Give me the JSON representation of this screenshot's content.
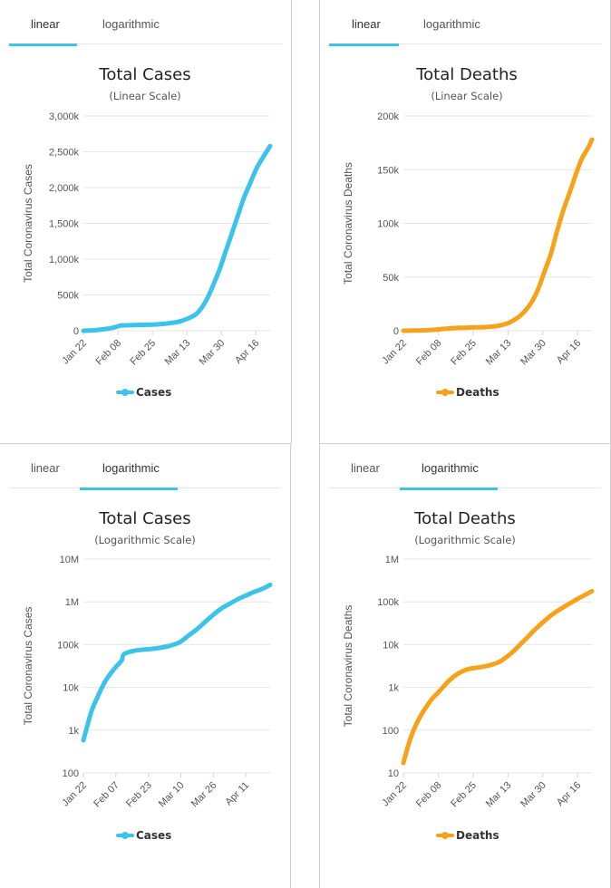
{
  "tabs": {
    "linear_label": "linear",
    "log_label": "logarithmic"
  },
  "chart_data": [
    {
      "id": "cases-linear",
      "type": "line",
      "title": "Total Cases",
      "subtitle": "(Linear Scale)",
      "ylabel": "Total Coronavirus Cases",
      "scale": "linear",
      "active_tab": "linear",
      "ylim": [
        0,
        3000000
      ],
      "yticks": [
        0,
        500000,
        1000000,
        1500000,
        2000000,
        2500000,
        3000000
      ],
      "ytick_labels": [
        "0",
        "500k",
        "1,000k",
        "1,500k",
        "2,000k",
        "2,500k",
        "3,000k"
      ],
      "xticks": [
        0,
        17,
        34,
        51,
        68,
        85
      ],
      "xtick_labels": [
        "Jan 22",
        "Feb 08",
        "Feb 25",
        "Mar 13",
        "Mar 30",
        "Apr 16"
      ],
      "xmax": 92,
      "series": [
        {
          "name": "Cases",
          "color": "#3bc3ec",
          "x": [
            0,
            5,
            10,
            15,
            18,
            20,
            25,
            30,
            35,
            40,
            45,
            48,
            51,
            55,
            58,
            61,
            64,
            67,
            70,
            73,
            76,
            79,
            82,
            85,
            88,
            92
          ],
          "y": [
            580,
            6000,
            20000,
            45000,
            71000,
            75000,
            78000,
            82000,
            87000,
            98000,
            115000,
            135000,
            165000,
            220000,
            310000,
            450000,
            640000,
            850000,
            1100000,
            1350000,
            1600000,
            1850000,
            2050000,
            2250000,
            2400000,
            2580000
          ]
        }
      ],
      "legend": "Cases"
    },
    {
      "id": "deaths-linear",
      "type": "line",
      "title": "Total Deaths",
      "subtitle": "(Linear Scale)",
      "ylabel": "Total Coronavirus Deaths",
      "scale": "linear",
      "active_tab": "linear",
      "ylim": [
        0,
        200000
      ],
      "yticks": [
        0,
        50000,
        100000,
        150000,
        200000
      ],
      "ytick_labels": [
        "0",
        "50k",
        "100k",
        "150k",
        "200k"
      ],
      "xticks": [
        0,
        17,
        34,
        51,
        68,
        85
      ],
      "xtick_labels": [
        "Jan 22",
        "Feb 08",
        "Feb 25",
        "Mar 13",
        "Mar 30",
        "Apr 16"
      ],
      "xmax": 92,
      "series": [
        {
          "name": "Deaths",
          "color": "#f7a21b",
          "x": [
            0,
            5,
            10,
            15,
            20,
            25,
            30,
            35,
            40,
            45,
            48,
            51,
            54,
            57,
            60,
            63,
            66,
            69,
            72,
            75,
            78,
            81,
            84,
            87,
            90,
            92
          ],
          "y": [
            17,
            130,
            420,
            900,
            1800,
            2500,
            2800,
            3100,
            3400,
            4200,
            5300,
            7000,
            10000,
            14000,
            20000,
            28000,
            40000,
            56000,
            72000,
            93000,
            112000,
            128000,
            145000,
            160000,
            170000,
            178000
          ]
        }
      ],
      "legend": "Deaths"
    },
    {
      "id": "cases-log",
      "type": "line",
      "title": "Total Cases",
      "subtitle": "(Logarithmic Scale)",
      "ylabel": "Total Coronavirus Cases",
      "scale": "log",
      "active_tab": "logarithmic",
      "ylim": [
        100,
        10000000
      ],
      "yticks": [
        100,
        1000,
        10000,
        100000,
        1000000,
        10000000
      ],
      "ytick_labels": [
        "100",
        "1k",
        "10k",
        "100k",
        "1M",
        "10M"
      ],
      "xticks": [
        0,
        16,
        32,
        48,
        64,
        80
      ],
      "xtick_labels": [
        "Jan 22",
        "Feb 07",
        "Feb 23",
        "Mar 10",
        "Mar 26",
        "Apr 11"
      ],
      "xmax": 92,
      "series": [
        {
          "name": "Cases",
          "color": "#3bc3ec",
          "x": [
            0,
            2,
            4,
            7,
            10,
            13,
            16,
            18,
            19,
            20,
            24,
            28,
            32,
            36,
            40,
            44,
            48,
            52,
            56,
            60,
            64,
            68,
            72,
            76,
            80,
            84,
            88,
            92
          ],
          "y": [
            580,
            1300,
            2800,
            6000,
            12000,
            20000,
            30000,
            38000,
            44000,
            60000,
            70000,
            75000,
            78000,
            82000,
            88000,
            98000,
            118000,
            165000,
            230000,
            340000,
            500000,
            700000,
            900000,
            1150000,
            1400000,
            1700000,
            2000000,
            2500000
          ]
        }
      ],
      "legend": "Cases"
    },
    {
      "id": "deaths-log",
      "type": "line",
      "title": "Total Deaths",
      "subtitle": "(Logarithmic Scale)",
      "ylabel": "Total Coronavirus Deaths",
      "scale": "log",
      "active_tab": "logarithmic",
      "ylim": [
        10,
        1000000
      ],
      "yticks": [
        10,
        100,
        1000,
        10000,
        100000,
        1000000
      ],
      "ytick_labels": [
        "10",
        "100",
        "1k",
        "10k",
        "100k",
        "1M"
      ],
      "xticks": [
        0,
        17,
        34,
        51,
        68,
        85
      ],
      "xtick_labels": [
        "Jan 22",
        "Feb 08",
        "Feb 25",
        "Mar 13",
        "Mar 30",
        "Apr 16"
      ],
      "xmax": 92,
      "series": [
        {
          "name": "Deaths",
          "color": "#f7a21b",
          "x": [
            0,
            1,
            3,
            5,
            8,
            11,
            14,
            17,
            20,
            23,
            26,
            29,
            32,
            35,
            38,
            41,
            44,
            47,
            50,
            53,
            56,
            60,
            64,
            68,
            72,
            76,
            80,
            84,
            88,
            92
          ],
          "y": [
            17,
            26,
            55,
            100,
            200,
            340,
            540,
            760,
            1100,
            1550,
            2000,
            2400,
            2700,
            2850,
            3000,
            3200,
            3500,
            4000,
            5000,
            6500,
            9000,
            14000,
            22000,
            33000,
            48000,
            65000,
            85000,
            110000,
            140000,
            178000
          ]
        }
      ],
      "legend": "Deaths"
    }
  ]
}
